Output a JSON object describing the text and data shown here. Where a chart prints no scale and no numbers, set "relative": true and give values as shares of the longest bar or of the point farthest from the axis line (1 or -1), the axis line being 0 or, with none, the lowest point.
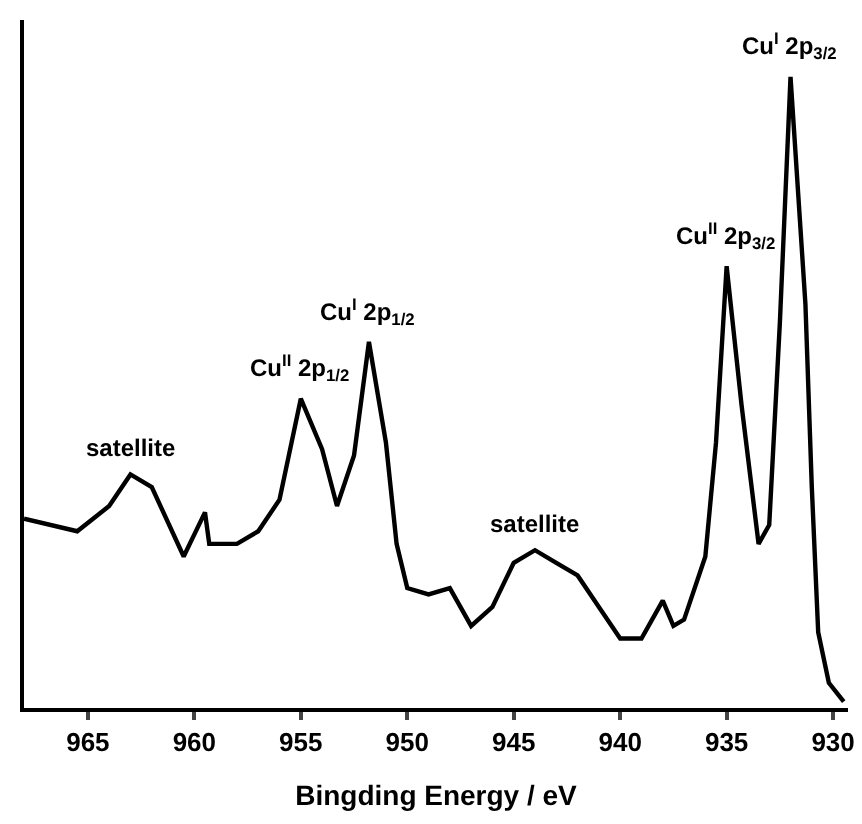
{
  "chart_data": {
    "type": "line",
    "xlabel": "Bingding Energy / eV",
    "relative": true,
    "color": "#000000",
    "x": [
      968,
      965.5,
      964,
      963,
      962,
      960.5,
      959.5,
      959.3,
      958,
      957,
      956,
      955,
      954,
      953.3,
      952.5,
      951.8,
      951,
      950.5,
      950,
      949,
      948,
      947,
      946,
      945,
      944,
      943,
      942,
      941,
      940,
      939,
      938,
      937.5,
      937,
      936,
      935.5,
      935,
      934.3,
      933.5,
      933,
      932.5,
      932,
      931.3,
      931,
      930.7,
      930.2,
      929.5
    ],
    "values": [
      0.3,
      0.28,
      0.32,
      0.37,
      0.35,
      0.24,
      0.31,
      0.26,
      0.26,
      0.28,
      0.33,
      0.49,
      0.41,
      0.32,
      0.4,
      0.58,
      0.42,
      0.26,
      0.19,
      0.18,
      0.19,
      0.13,
      0.16,
      0.23,
      0.25,
      0.23,
      0.21,
      0.16,
      0.11,
      0.11,
      0.17,
      0.13,
      0.14,
      0.24,
      0.42,
      0.7,
      0.48,
      0.26,
      0.29,
      0.61,
      1.0,
      0.64,
      0.35,
      0.12,
      0.04,
      0.01
    ],
    "xlim": [
      968,
      929.3
    ],
    "xticks": [
      965,
      960,
      955,
      950,
      945,
      940,
      935,
      930
    ],
    "annotations": [
      {
        "text": "satellite",
        "x": 963,
        "y": 0.37
      },
      {
        "text": "Cu$^{II}$ 2p$_{1/2}$",
        "x": 955,
        "y": 0.49
      },
      {
        "text": "Cu$^{I}$ 2p$_{1/2}$",
        "x": 951.8,
        "y": 0.58
      },
      {
        "text": "satellite",
        "x": 944,
        "y": 0.25
      },
      {
        "text": "Cu$^{II}$ 2p$_{3/2}$",
        "x": 935,
        "y": 0.7
      },
      {
        "text": "Cu$^{I}$ 2p$_{3/2}$",
        "x": 932,
        "y": 1.0
      }
    ]
  }
}
